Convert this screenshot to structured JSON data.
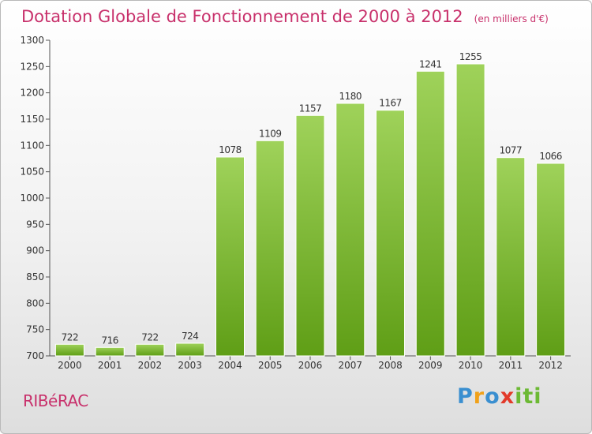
{
  "header": {
    "title": "Dotation Globale de Fonctionnement de 2000 à 2012",
    "unit": "(en milliers d'€)"
  },
  "footer": {
    "place": "RIBéRAC",
    "logo": "Proxiti"
  },
  "colors": {
    "title": "#c8306b",
    "bar_light": "#9fd25a",
    "bar_dark": "#5f9e16",
    "axis": "#555555"
  },
  "chart_data": {
    "type": "bar",
    "title": "Dotation Globale de Fonctionnement de 2000 à 2012",
    "xlabel": "",
    "ylabel": "",
    "categories": [
      "2000",
      "2001",
      "2002",
      "2003",
      "2004",
      "2005",
      "2006",
      "2007",
      "2008",
      "2009",
      "2010",
      "2011",
      "2012"
    ],
    "values": [
      722,
      716,
      722,
      724,
      1078,
      1109,
      1157,
      1180,
      1167,
      1241,
      1255,
      1077,
      1066
    ],
    "ylim": [
      700,
      1300
    ],
    "yticks": [
      700,
      750,
      800,
      850,
      900,
      950,
      1000,
      1050,
      1100,
      1150,
      1200,
      1250,
      1300
    ],
    "grid": false,
    "legend": "none"
  }
}
